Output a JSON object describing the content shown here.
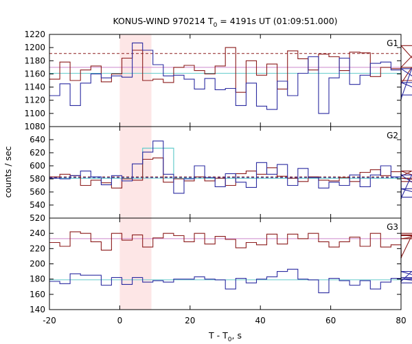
{
  "chart_data": {
    "type": "line",
    "title": "KONUS-WIND 970214 T",
    "title_sub": "0",
    "title_rest": " = 4191s UT (01:09:51.000)",
    "xlabel": "T - T",
    "xlabel_sub": "0",
    "xlabel_rest": ", s",
    "ylabel": "counts / sec",
    "xlim": [
      -20,
      80
    ],
    "xticks": [
      -20,
      0,
      20,
      40,
      60,
      80
    ],
    "bin_width": 2.944,
    "bin_start": -20,
    "highlight_interval": [
      0,
      9
    ],
    "colors": {
      "dark_red": "#8b1a1a",
      "dark_blue": "#2a2aa0",
      "cyan": "#66cccc",
      "violet": "#cc88cc",
      "highlight": "#fde6e6",
      "dashed_red": "#8b1a1a",
      "dashed_blue": "#2a2aa0"
    },
    "panels": [
      {
        "label": "G1",
        "ylim": [
          1080,
          1220
        ],
        "yticks": [
          1080,
          1100,
          1120,
          1140,
          1160,
          1180,
          1200,
          1220
        ],
        "series": [
          {
            "color": "dark_red",
            "values": [
              1152,
              1178,
              1150,
              1166,
              1172,
              1148,
              1160,
              1184,
              1196,
              1150,
              1152,
              1147,
              1170,
              1173,
              1165,
              1160,
              1172,
              1200,
              1132,
              1180,
              1158,
              1175,
              1137,
              1195,
              1183,
              1166,
              1190,
              1186,
              1165,
              1193,
              1192,
              1156,
              1170,
              1168,
              1145,
              1170,
              1203,
              1150
            ]
          },
          {
            "color": "dark_blue",
            "values": [
              1127,
              1145,
              1112,
              1146,
              1160,
              1154,
              1157,
              1155,
              1207,
              1196,
              1174,
              1157,
              1158,
              1152,
              1137,
              1153,
              1136,
              1138,
              1112,
              1146,
              1111,
              1106,
              1149,
              1127,
              1161,
              1186,
              1100,
              1154,
              1184,
              1144,
              1158,
              1176,
              1178,
              1166,
              1122,
              1168,
              1147,
              1128
            ]
          }
        ],
        "hlines": [
          {
            "y": 1191,
            "color": "dashed_red",
            "dashed": true
          },
          {
            "y": 1170,
            "color": "violet",
            "dashed": false
          },
          {
            "y": 1161,
            "color": "cyan",
            "dashed": false
          }
        ]
      },
      {
        "label": "G2",
        "ylim": [
          520,
          660
        ],
        "yticks": [
          520,
          540,
          560,
          580,
          600,
          620,
          640
        ],
        "series": [
          {
            "color": "dark_red",
            "values": [
              583,
              587,
              585,
              570,
              578,
              574,
              566,
              580,
              578,
              610,
              612,
              575,
              580,
              577,
              583,
              577,
              581,
              570,
              588,
              592,
              587,
              597,
              584,
              581,
              576,
              583,
              578,
              577,
              582,
              576,
              590,
              594,
              585,
              591,
              584,
              592,
              581,
              576
            ]
          },
          {
            "color": "dark_blue",
            "values": [
              581,
              580,
              585,
              592,
              583,
              571,
              585,
              577,
              603,
              621,
              638,
              587,
              558,
              580,
              600,
              582,
              568,
              588,
              575,
              567,
              605,
              587,
              602,
              570,
              596,
              582,
              566,
              575,
              570,
              586,
              568,
              586,
              600,
              583,
              550,
              586,
              565,
              552
            ]
          }
        ],
        "hlines": [
          {
            "y": 583,
            "color": "dashed_red",
            "dashed": true
          },
          {
            "y": 582,
            "color": "dashed_blue",
            "dashed": true
          },
          {
            "y": 581,
            "color": "cyan",
            "dashed": false
          }
        ],
        "step_overlay": {
          "color": "cyan",
          "values": [
            581,
            581,
            581,
            581,
            581,
            581,
            581,
            581,
            581,
            627,
            627,
            627,
            581,
            581,
            581,
            581,
            581,
            581,
            581,
            581,
            581,
            581,
            581,
            581,
            581,
            581,
            581,
            581,
            581,
            581,
            581,
            581,
            581,
            581,
            581,
            581,
            581,
            581
          ]
        }
      },
      {
        "label": "G3",
        "ylim": [
          140,
          260
        ],
        "yticks": [
          140,
          160,
          180,
          200,
          220,
          240
        ],
        "series": [
          {
            "color": "dark_red",
            "values": [
              228,
              223,
              242,
              240,
              229,
              218,
              240,
              231,
              238,
              222,
              234,
              240,
              237,
              229,
              240,
              226,
              236,
              232,
              221,
              228,
              225,
              239,
              226,
              239,
              233,
              240,
              229,
              222,
              229,
              235,
              223,
              240,
              222,
              225,
              208,
              237,
              238,
              233,
              240
            ]
          },
          {
            "color": "dark_blue",
            "values": [
              177,
              174,
              187,
              185,
              185,
              172,
              182,
              173,
              182,
              176,
              178,
              176,
              180,
              180,
              183,
              180,
              179,
              167,
              181,
              175,
              180,
              183,
              190,
              193,
              180,
              179,
              162,
              181,
              178,
              172,
              178,
              167,
              176,
              181,
              177,
              190,
              182,
              180,
              175
            ]
          }
        ],
        "hlines": [
          {
            "y": 233,
            "color": "violet",
            "dashed": false
          },
          {
            "y": 179,
            "color": "cyan",
            "dashed": false
          }
        ]
      }
    ]
  }
}
